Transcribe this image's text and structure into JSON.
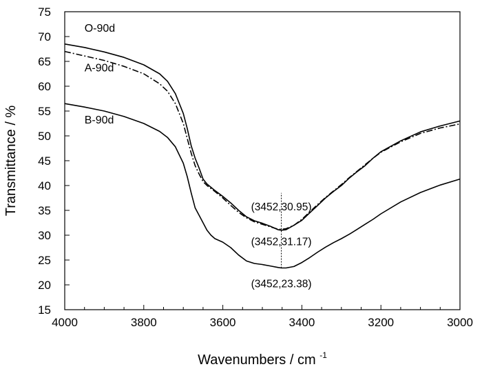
{
  "chart_data": {
    "type": "line",
    "title": "",
    "xlabel": "Wavenumbers / cm",
    "xlabel_superscript": "-1",
    "ylabel": "Transmittance / %",
    "xlim": [
      4000,
      3000
    ],
    "ylim": [
      15,
      75
    ],
    "x_reversed": true,
    "xticks": [
      4000,
      3800,
      3600,
      3400,
      3200,
      3000
    ],
    "xtick_labels": [
      "4000",
      "3800",
      "3600",
      "3400",
      "3200",
      "3000"
    ],
    "yticks": [
      15,
      20,
      25,
      30,
      35,
      40,
      45,
      50,
      55,
      60,
      65,
      70,
      75
    ],
    "ytick_labels": [
      "15",
      "20",
      "25",
      "30",
      "35",
      "40",
      "45",
      "50",
      "55",
      "60",
      "65",
      "70",
      "75"
    ],
    "grid": false,
    "legend": "none",
    "series": [
      {
        "name": "O-90d",
        "style": "solid",
        "color": "#000000",
        "points": [
          [
            4000,
            68.5
          ],
          [
            3950,
            67.8
          ],
          [
            3900,
            66.9
          ],
          [
            3850,
            65.8
          ],
          [
            3800,
            64.3
          ],
          [
            3760,
            62.5
          ],
          [
            3740,
            61.0
          ],
          [
            3720,
            58.5
          ],
          [
            3700,
            54.5
          ],
          [
            3690,
            51.5
          ],
          [
            3680,
            48.0
          ],
          [
            3670,
            45.5
          ],
          [
            3660,
            43.5
          ],
          [
            3650,
            41.3
          ],
          [
            3640,
            40.3
          ],
          [
            3620,
            39.0
          ],
          [
            3600,
            37.8
          ],
          [
            3580,
            36.5
          ],
          [
            3560,
            35.0
          ],
          [
            3540,
            33.7
          ],
          [
            3520,
            32.9
          ],
          [
            3500,
            32.4
          ],
          [
            3480,
            31.8
          ],
          [
            3460,
            31.1
          ],
          [
            3452,
            31.0
          ],
          [
            3440,
            31.1
          ],
          [
            3420,
            32.0
          ],
          [
            3400,
            33.0
          ],
          [
            3380,
            34.5
          ],
          [
            3360,
            36.0
          ],
          [
            3340,
            37.5
          ],
          [
            3320,
            38.8
          ],
          [
            3300,
            40.0
          ],
          [
            3280,
            41.5
          ],
          [
            3260,
            42.8
          ],
          [
            3240,
            44.0
          ],
          [
            3220,
            45.5
          ],
          [
            3200,
            46.8
          ],
          [
            3150,
            49.0
          ],
          [
            3100,
            50.8
          ],
          [
            3050,
            52.0
          ],
          [
            3000,
            53.0
          ]
        ]
      },
      {
        "name": "A-90d",
        "style": "dashdot",
        "color": "#000000",
        "points": [
          [
            4000,
            67.0
          ],
          [
            3950,
            66.1
          ],
          [
            3900,
            65.2
          ],
          [
            3850,
            64.0
          ],
          [
            3800,
            62.5
          ],
          [
            3760,
            60.5
          ],
          [
            3740,
            59.0
          ],
          [
            3720,
            56.5
          ],
          [
            3700,
            52.5
          ],
          [
            3690,
            49.5
          ],
          [
            3680,
            46.5
          ],
          [
            3670,
            44.0
          ],
          [
            3660,
            42.3
          ],
          [
            3650,
            40.8
          ],
          [
            3640,
            40.0
          ],
          [
            3620,
            38.8
          ],
          [
            3600,
            37.5
          ],
          [
            3580,
            36.0
          ],
          [
            3560,
            34.6
          ],
          [
            3540,
            33.5
          ],
          [
            3520,
            32.7
          ],
          [
            3500,
            32.2
          ],
          [
            3480,
            31.7
          ],
          [
            3460,
            31.2
          ],
          [
            3452,
            31.2
          ],
          [
            3440,
            31.3
          ],
          [
            3420,
            32.0
          ],
          [
            3400,
            33.2
          ],
          [
            3380,
            34.7
          ],
          [
            3360,
            36.2
          ],
          [
            3340,
            37.6
          ],
          [
            3320,
            38.9
          ],
          [
            3300,
            40.2
          ],
          [
            3280,
            41.6
          ],
          [
            3260,
            42.9
          ],
          [
            3240,
            44.2
          ],
          [
            3220,
            45.5
          ],
          [
            3200,
            46.7
          ],
          [
            3150,
            48.8
          ],
          [
            3100,
            50.5
          ],
          [
            3050,
            51.6
          ],
          [
            3000,
            52.4
          ]
        ]
      },
      {
        "name": "B-90d",
        "style": "solid",
        "color": "#000000",
        "points": [
          [
            4000,
            56.5
          ],
          [
            3950,
            55.8
          ],
          [
            3900,
            55.0
          ],
          [
            3850,
            53.9
          ],
          [
            3800,
            52.5
          ],
          [
            3760,
            50.9
          ],
          [
            3740,
            49.7
          ],
          [
            3720,
            47.8
          ],
          [
            3700,
            44.5
          ],
          [
            3690,
            41.8
          ],
          [
            3680,
            38.5
          ],
          [
            3670,
            35.5
          ],
          [
            3660,
            34.0
          ],
          [
            3650,
            32.5
          ],
          [
            3640,
            31.0
          ],
          [
            3630,
            30.0
          ],
          [
            3620,
            29.3
          ],
          [
            3600,
            28.6
          ],
          [
            3580,
            27.5
          ],
          [
            3560,
            26.0
          ],
          [
            3540,
            24.8
          ],
          [
            3520,
            24.3
          ],
          [
            3500,
            24.1
          ],
          [
            3480,
            23.8
          ],
          [
            3460,
            23.5
          ],
          [
            3452,
            23.4
          ],
          [
            3440,
            23.4
          ],
          [
            3420,
            23.7
          ],
          [
            3400,
            24.5
          ],
          [
            3380,
            25.5
          ],
          [
            3360,
            26.6
          ],
          [
            3340,
            27.6
          ],
          [
            3320,
            28.5
          ],
          [
            3300,
            29.3
          ],
          [
            3280,
            30.2
          ],
          [
            3260,
            31.2
          ],
          [
            3240,
            32.2
          ],
          [
            3220,
            33.2
          ],
          [
            3200,
            34.3
          ],
          [
            3150,
            36.7
          ],
          [
            3100,
            38.6
          ],
          [
            3050,
            40.1
          ],
          [
            3000,
            41.3
          ]
        ]
      }
    ],
    "series_labels": [
      {
        "text": "O-90d",
        "x": 3950,
        "y": 71
      },
      {
        "text": "A-90d",
        "x": 3950,
        "y": 63
      },
      {
        "text": "B-90d",
        "x": 3950,
        "y": 52.5
      }
    ],
    "vertical_marker": {
      "x": 3452,
      "y_from": 23.38,
      "y_to": 38.5,
      "style": "dotted"
    },
    "annotations": [
      {
        "text": "(3452,30.95)",
        "x": 3452,
        "y": 35
      },
      {
        "text": "(3452,31.17)",
        "x": 3452,
        "y": 28
      },
      {
        "text": "(3452,23.38)",
        "x": 3452,
        "y": 19.5
      }
    ]
  }
}
